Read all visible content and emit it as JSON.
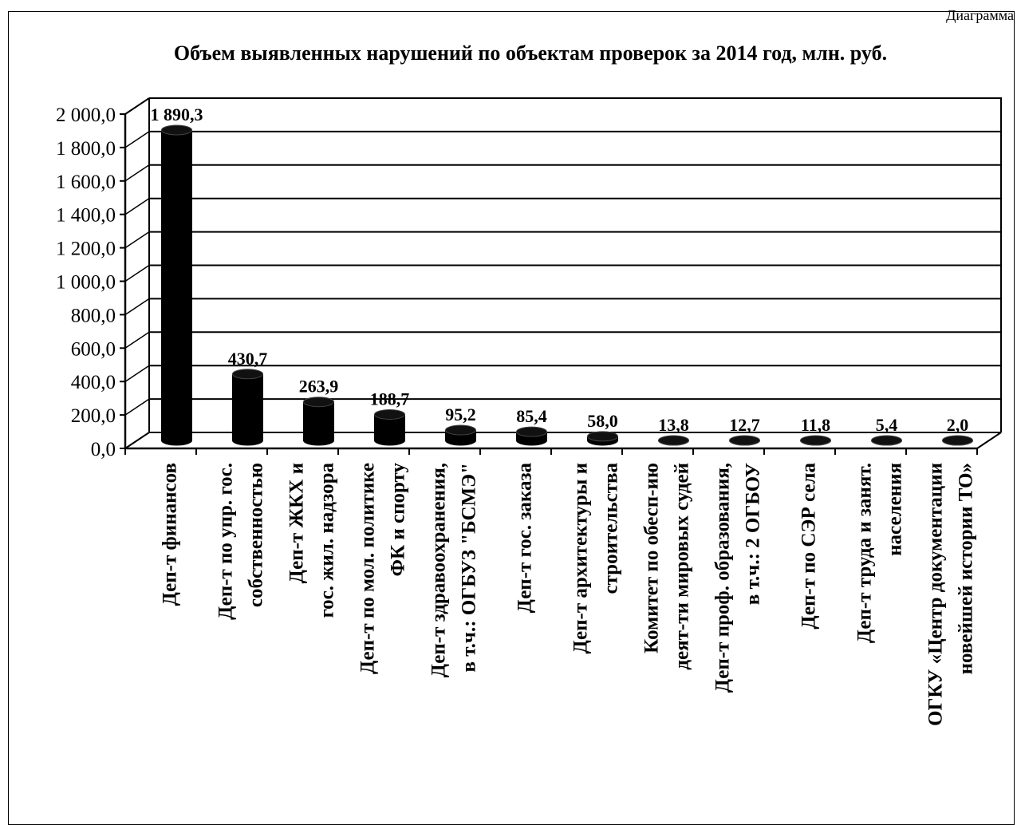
{
  "corner_label": "Диаграмма",
  "chart_data": {
    "type": "bar",
    "title": "Объем выявленных нарушений по объектам проверок за 2014 год, млн. руб.",
    "xlabel": "",
    "ylabel": "",
    "ylim": [
      0,
      2000
    ],
    "y_ticks": [
      "0,0",
      "200,0",
      "400,0",
      "600,0",
      "800,0",
      "1 000,0",
      "1 200,0",
      "1 400,0",
      "1 600,0",
      "1 800,0",
      "2 000,0"
    ],
    "grid": true,
    "bar_color": "#000000",
    "categories": [
      [
        "Деп-т финансов"
      ],
      [
        "Деп-т по упр. гос.",
        "собственностью"
      ],
      [
        "Деп-т ЖКХ и",
        "гос. жил. надзора"
      ],
      [
        "Деп-т по мол. политике",
        "ФК и спорту"
      ],
      [
        "Деп-т здравоохранения,",
        "в т.ч.: ОГБУЗ \"БСМЭ\""
      ],
      [
        "Деп-т гос. заказа"
      ],
      [
        "Деп-т архитектуры и",
        "строительства"
      ],
      [
        "Комитет по обесп-ию",
        "деят-ти мировых судей"
      ],
      [
        "Деп-т проф. образования,",
        "в т.ч.: 2 ОГБОУ"
      ],
      [
        "Деп-т по СЭР села"
      ],
      [
        "Деп-т труда и занят.",
        "населения"
      ],
      [
        "ОГКУ «Центр документации",
        "новейшей истории ТО»"
      ]
    ],
    "values": [
      1890.3,
      430.7,
      263.9,
      188.7,
      95.2,
      85.4,
      58.0,
      13.8,
      12.7,
      11.8,
      5.4,
      2.0
    ],
    "data_labels": [
      "1 890,3",
      "430,7",
      "263,9",
      "188,7",
      "95,2",
      "85,4",
      "58,0",
      "13,8",
      "12,7",
      "11,8",
      "5,4",
      "2,0"
    ]
  }
}
